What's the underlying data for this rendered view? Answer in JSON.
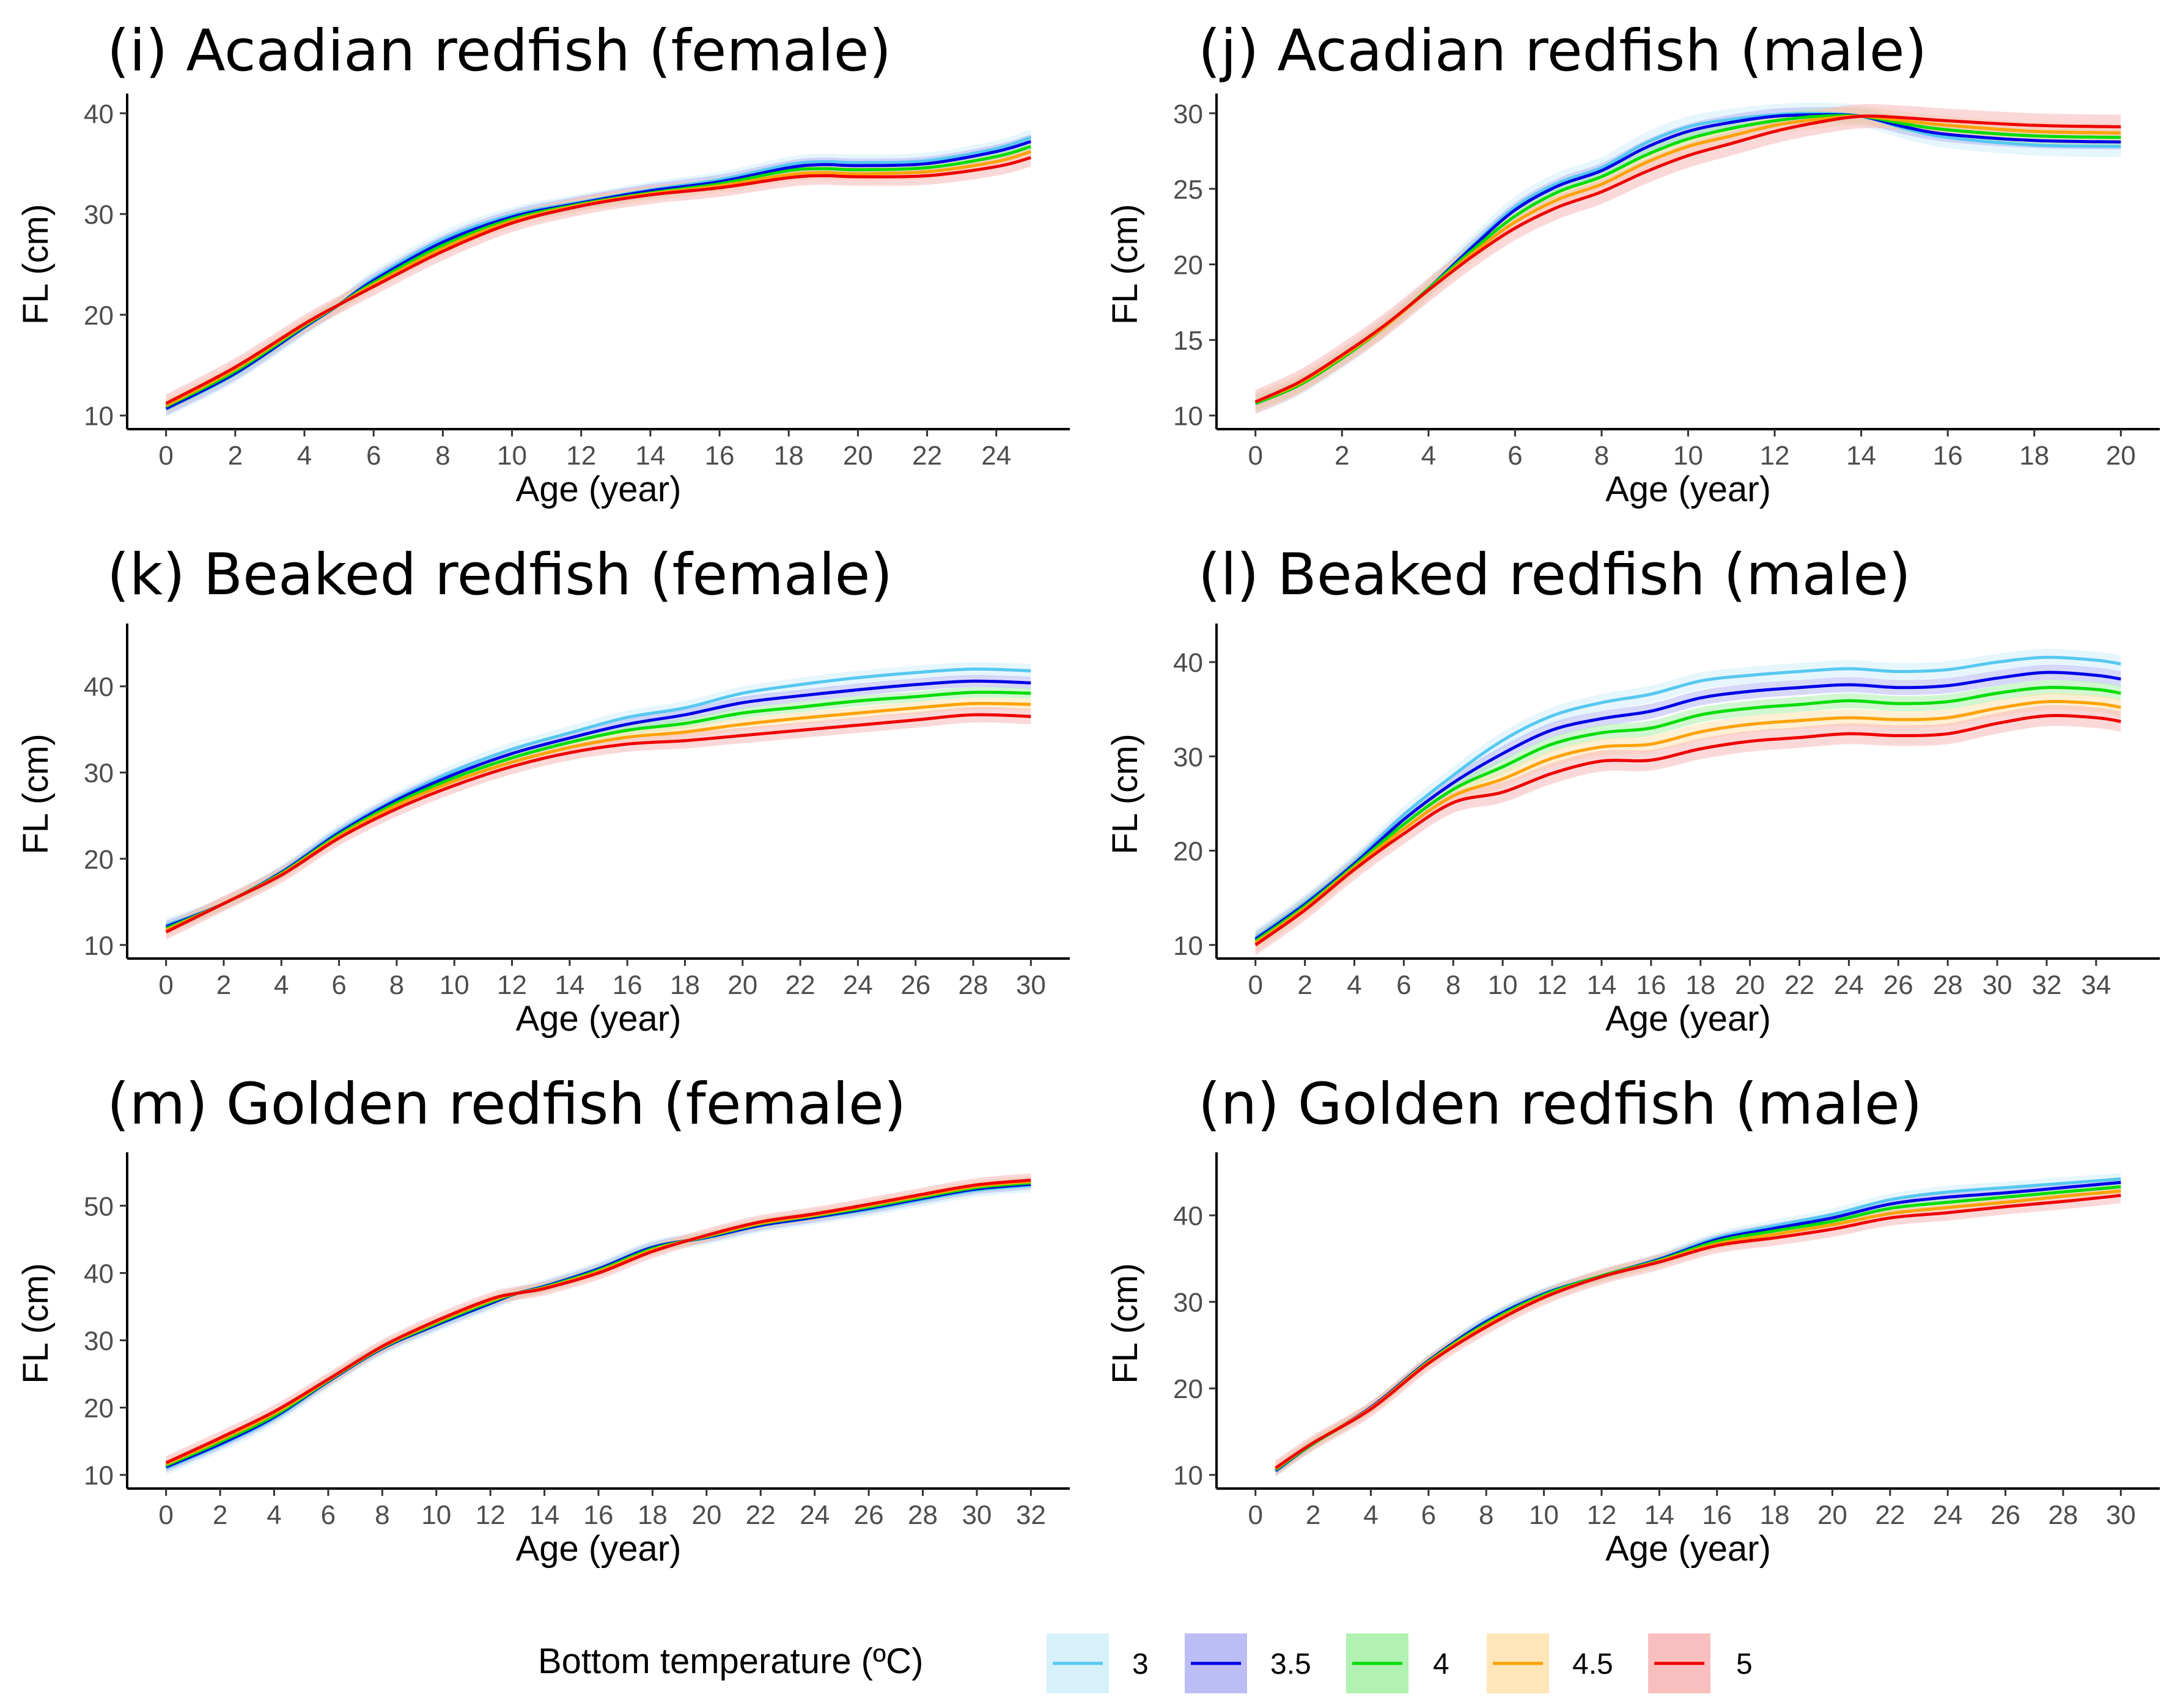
{
  "legend": {
    "title": "Bottom temperature (ºC)",
    "entries": [
      {
        "label": "3",
        "color": "#56c8f0",
        "fill": "#d2eff9"
      },
      {
        "label": "3.5",
        "color": "#0000e6",
        "fill": "#b6b6f5"
      },
      {
        "label": "4",
        "color": "#00dd00",
        "fill": "#a9f0a9"
      },
      {
        "label": "4.5",
        "color": "#ffa200",
        "fill": "#ffe3b0"
      },
      {
        "label": "5",
        "color": "#ee0000",
        "fill": "#f8b8b8"
      }
    ]
  },
  "chart_data": [
    {
      "type": "line",
      "title": "(i) Acadian redfish (female)",
      "xlabel": "Age (year)",
      "ylabel": "FL (cm)",
      "xlim": [
        0,
        25
      ],
      "ylim": [
        10,
        40
      ],
      "xticks": [
        0,
        2,
        4,
        6,
        8,
        10,
        12,
        14,
        16,
        18,
        20,
        22,
        24
      ],
      "yticks": [
        10,
        20,
        30,
        40
      ],
      "x": [
        0,
        2,
        4,
        5,
        6,
        8,
        10,
        12,
        14,
        16,
        18,
        19,
        20,
        22,
        24,
        25
      ],
      "series": [
        {
          "name": "3",
          "values": [
            10.6,
            14.1,
            18.7,
            21.0,
            23.6,
            27.5,
            29.9,
            31.2,
            32.4,
            33.4,
            34.9,
            35.2,
            35.1,
            35.3,
            36.5,
            37.6
          ],
          "band": 0.8
        },
        {
          "name": "3.5",
          "values": [
            10.7,
            14.2,
            18.8,
            21.0,
            23.4,
            27.2,
            29.7,
            31.1,
            32.3,
            33.2,
            34.6,
            34.9,
            34.8,
            35.0,
            36.2,
            37.2
          ],
          "band": 0.7
        },
        {
          "name": "4",
          "values": [
            10.9,
            14.4,
            18.9,
            21.0,
            23.2,
            26.9,
            29.5,
            31.0,
            32.1,
            33.0,
            34.3,
            34.5,
            34.4,
            34.6,
            35.7,
            36.7
          ],
          "band": 0.6
        },
        {
          "name": "4.5",
          "values": [
            11.0,
            14.6,
            19.0,
            21.0,
            23.0,
            26.6,
            29.3,
            30.9,
            32.0,
            32.8,
            33.9,
            34.1,
            34.0,
            34.2,
            35.2,
            36.2
          ],
          "band": 0.7
        },
        {
          "name": "5",
          "values": [
            11.2,
            14.8,
            19.1,
            21.0,
            22.8,
            26.3,
            29.1,
            30.8,
            31.9,
            32.6,
            33.6,
            33.8,
            33.7,
            33.8,
            34.7,
            35.6
          ],
          "band": 0.9
        }
      ]
    },
    {
      "type": "line",
      "title": "(j) Acadian redfish (male)",
      "xlabel": "Age (year)",
      "ylabel": "FL (cm)",
      "xlim": [
        0,
        20
      ],
      "ylim": [
        10,
        30
      ],
      "xticks": [
        0,
        2,
        4,
        6,
        8,
        10,
        12,
        14,
        16,
        18,
        20
      ],
      "yticks": [
        10,
        15,
        20,
        25,
        30
      ],
      "x": [
        0,
        1,
        2,
        3,
        4,
        5,
        6,
        7,
        8,
        9,
        10,
        11,
        12,
        13,
        14,
        15,
        16,
        18,
        20
      ],
      "series": [
        {
          "name": "3",
          "values": [
            10.8,
            12.0,
            13.8,
            15.9,
            18.4,
            21.2,
            23.8,
            25.4,
            26.4,
            28.0,
            29.1,
            29.6,
            29.9,
            30.0,
            29.8,
            29.0,
            28.4,
            27.9,
            27.8
          ],
          "band": 0.7
        },
        {
          "name": "3.5",
          "values": [
            10.8,
            12.0,
            13.8,
            15.9,
            18.4,
            21.1,
            23.6,
            25.2,
            26.2,
            27.7,
            28.8,
            29.4,
            29.8,
            29.9,
            29.8,
            29.1,
            28.6,
            28.2,
            28.1
          ],
          "band": 0.5
        },
        {
          "name": "4",
          "values": [
            10.8,
            12.0,
            13.8,
            15.9,
            18.4,
            20.9,
            23.2,
            24.8,
            25.8,
            27.2,
            28.3,
            29.0,
            29.5,
            29.8,
            29.8,
            29.3,
            28.9,
            28.5,
            28.4
          ],
          "band": 0.5
        },
        {
          "name": "4.5",
          "values": [
            10.9,
            12.1,
            13.9,
            15.9,
            18.3,
            20.7,
            22.8,
            24.3,
            25.3,
            26.7,
            27.8,
            28.5,
            29.2,
            29.6,
            29.8,
            29.5,
            29.2,
            28.8,
            28.7
          ],
          "band": 0.6
        },
        {
          "name": "5",
          "values": [
            10.9,
            12.2,
            14.0,
            16.0,
            18.3,
            20.5,
            22.4,
            23.8,
            24.8,
            26.1,
            27.2,
            28.0,
            28.8,
            29.4,
            29.8,
            29.7,
            29.5,
            29.2,
            29.1
          ],
          "band": 0.8
        }
      ]
    },
    {
      "type": "line",
      "title": "(k) Beaked redfish (female)",
      "xlabel": "Age (year)",
      "ylabel": "FL (cm)",
      "xlim": [
        0,
        30
      ],
      "ylim": [
        10,
        45
      ],
      "xticks": [
        0,
        2,
        4,
        6,
        8,
        10,
        12,
        14,
        16,
        18,
        20,
        22,
        24,
        26,
        28,
        30
      ],
      "yticks": [
        10,
        20,
        30,
        40
      ],
      "x": [
        0,
        2,
        4,
        6,
        8,
        10,
        12,
        14,
        16,
        18,
        20,
        22,
        24,
        26,
        28,
        30
      ],
      "series": [
        {
          "name": "3",
          "values": [
            12.3,
            14.8,
            18.5,
            23.2,
            27.0,
            30.2,
            32.7,
            34.6,
            36.4,
            37.5,
            39.2,
            40.2,
            41.0,
            41.6,
            42.0,
            41.8
          ],
          "band": 0.8
        },
        {
          "name": "3.5",
          "values": [
            12.1,
            14.8,
            18.4,
            23.0,
            26.8,
            29.8,
            32.2,
            34.0,
            35.6,
            36.7,
            38.1,
            38.9,
            39.6,
            40.2,
            40.6,
            40.4
          ],
          "band": 0.7
        },
        {
          "name": "4",
          "values": [
            11.9,
            14.8,
            18.3,
            22.8,
            26.5,
            29.4,
            31.7,
            33.5,
            34.9,
            35.7,
            36.9,
            37.6,
            38.3,
            38.8,
            39.3,
            39.2
          ],
          "band": 0.6
        },
        {
          "name": "4.5",
          "values": [
            11.7,
            14.8,
            18.2,
            22.6,
            26.2,
            29.0,
            31.2,
            32.9,
            34.1,
            34.7,
            35.6,
            36.3,
            36.9,
            37.5,
            38.0,
            37.9
          ],
          "band": 0.7
        },
        {
          "name": "5",
          "values": [
            11.5,
            14.8,
            18.1,
            22.4,
            25.8,
            28.5,
            30.7,
            32.3,
            33.3,
            33.7,
            34.3,
            34.9,
            35.5,
            36.1,
            36.7,
            36.5
          ],
          "band": 0.9
        }
      ]
    },
    {
      "type": "line",
      "title": "(l) Beaked redfish (male)",
      "xlabel": "Age (year)",
      "ylabel": "FL (cm)",
      "xlim": [
        0,
        35
      ],
      "ylim": [
        10,
        42
      ],
      "xticks": [
        0,
        2,
        4,
        6,
        8,
        10,
        12,
        14,
        16,
        18,
        20,
        22,
        24,
        26,
        28,
        30,
        32,
        34
      ],
      "yticks": [
        10,
        20,
        30,
        40
      ],
      "x": [
        0,
        2,
        4,
        6,
        8,
        10,
        12,
        14,
        16,
        18,
        20,
        22,
        24,
        26,
        28,
        30,
        32,
        34,
        35
      ],
      "series": [
        {
          "name": "3",
          "values": [
            10.8,
            14.5,
            18.8,
            23.8,
            28.0,
            31.7,
            34.3,
            35.7,
            36.6,
            38.0,
            38.6,
            39.0,
            39.3,
            39.0,
            39.2,
            40.0,
            40.5,
            40.2,
            39.8
          ],
          "band": 0.9
        },
        {
          "name": "3.5",
          "values": [
            10.6,
            14.3,
            18.6,
            23.3,
            27.2,
            30.3,
            32.8,
            34.0,
            34.8,
            36.2,
            36.9,
            37.3,
            37.6,
            37.3,
            37.5,
            38.3,
            38.9,
            38.6,
            38.2
          ],
          "band": 0.8
        },
        {
          "name": "4",
          "values": [
            10.4,
            14.1,
            18.4,
            22.8,
            26.5,
            28.9,
            31.3,
            32.5,
            33.0,
            34.4,
            35.1,
            35.5,
            35.9,
            35.6,
            35.8,
            36.7,
            37.3,
            37.1,
            36.7
          ],
          "band": 0.8
        },
        {
          "name": "4.5",
          "values": [
            10.2,
            13.9,
            18.2,
            22.3,
            25.8,
            27.6,
            29.8,
            31.0,
            31.3,
            32.6,
            33.4,
            33.8,
            34.1,
            33.9,
            34.1,
            35.1,
            35.8,
            35.6,
            35.2
          ],
          "band": 0.9
        },
        {
          "name": "5",
          "values": [
            10.0,
            13.7,
            18.0,
            21.8,
            25.1,
            26.2,
            28.2,
            29.5,
            29.6,
            30.8,
            31.6,
            32.0,
            32.4,
            32.2,
            32.4,
            33.5,
            34.3,
            34.1,
            33.7
          ],
          "band": 1.1
        }
      ]
    },
    {
      "type": "line",
      "title": "(m) Golden redfish (female)",
      "xlabel": "Age (year)",
      "ylabel": "FL (cm)",
      "xlim": [
        0,
        32
      ],
      "ylim": [
        10,
        55
      ],
      "xticks": [
        0,
        2,
        4,
        6,
        8,
        10,
        12,
        14,
        16,
        18,
        20,
        22,
        24,
        26,
        28,
        30,
        32
      ],
      "yticks": [
        10,
        20,
        30,
        40,
        50
      ],
      "x": [
        0,
        2,
        4,
        6,
        8,
        10,
        12,
        13,
        14,
        16,
        18,
        20,
        22,
        24,
        26,
        28,
        30,
        32
      ],
      "series": [
        {
          "name": "3",
          "values": [
            11.0,
            14.4,
            18.4,
            23.8,
            28.7,
            32.2,
            35.4,
            37.0,
            38.1,
            40.7,
            43.9,
            45.2,
            47.0,
            48.2,
            49.4,
            50.9,
            52.3,
            53.0
          ],
          "band": 1.0
        },
        {
          "name": "3.5",
          "values": [
            11.2,
            14.6,
            18.6,
            23.9,
            28.8,
            32.3,
            35.5,
            37.0,
            38.0,
            40.6,
            43.8,
            45.3,
            47.1,
            48.3,
            49.6,
            51.1,
            52.5,
            53.2
          ],
          "band": 0.8
        },
        {
          "name": "4",
          "values": [
            11.4,
            14.9,
            18.8,
            24.0,
            28.9,
            32.5,
            35.7,
            37.0,
            37.9,
            40.4,
            43.6,
            45.4,
            47.3,
            48.5,
            49.8,
            51.3,
            52.7,
            53.4
          ],
          "band": 0.7
        },
        {
          "name": "4.5",
          "values": [
            11.6,
            15.2,
            19.1,
            24.1,
            29.0,
            32.7,
            35.9,
            37.0,
            37.8,
            40.2,
            43.4,
            45.5,
            47.4,
            48.6,
            50.0,
            51.5,
            52.9,
            53.6
          ],
          "band": 0.8
        },
        {
          "name": "5",
          "values": [
            11.8,
            15.5,
            19.4,
            24.2,
            29.1,
            32.9,
            36.1,
            37.0,
            37.7,
            40.0,
            43.2,
            45.6,
            47.6,
            48.8,
            50.2,
            51.7,
            53.1,
            53.8
          ],
          "band": 1.0
        }
      ]
    },
    {
      "type": "line",
      "title": "(n) Golden redfish (male)",
      "xlabel": "Age (year)",
      "ylabel": "FL (cm)",
      "xlim": [
        0,
        30
      ],
      "ylim": [
        10,
        45
      ],
      "xticks": [
        0,
        2,
        4,
        6,
        8,
        10,
        12,
        14,
        16,
        18,
        20,
        22,
        24,
        26,
        28,
        30
      ],
      "yticks": [
        10,
        20,
        30,
        40
      ],
      "x": [
        0.7,
        2,
        4,
        6,
        8,
        10,
        12,
        14,
        16,
        18,
        20,
        22,
        24,
        26,
        28,
        30
      ],
      "series": [
        {
          "name": "3",
          "values": [
            10.4,
            13.6,
            17.8,
            23.2,
            27.8,
            31.0,
            33.0,
            35.0,
            37.4,
            38.8,
            40.1,
            41.8,
            42.7,
            43.2,
            43.7,
            44.2
          ],
          "band": 0.7
        },
        {
          "name": "3.5",
          "values": [
            10.5,
            13.6,
            17.8,
            23.2,
            27.7,
            30.9,
            33.0,
            34.9,
            37.2,
            38.5,
            39.7,
            41.3,
            42.1,
            42.6,
            43.2,
            43.8
          ],
          "band": 0.6
        },
        {
          "name": "4",
          "values": [
            10.6,
            13.6,
            17.7,
            23.1,
            27.5,
            30.8,
            33.0,
            34.8,
            37.0,
            38.2,
            39.3,
            40.8,
            41.5,
            42.1,
            42.7,
            43.3
          ],
          "band": 0.6
        },
        {
          "name": "4.5",
          "values": [
            10.7,
            13.7,
            17.7,
            23.0,
            27.3,
            30.6,
            32.9,
            34.7,
            36.7,
            37.8,
            38.9,
            40.2,
            40.9,
            41.5,
            42.2,
            42.8
          ],
          "band": 0.7
        },
        {
          "name": "5",
          "values": [
            10.8,
            13.7,
            17.6,
            22.9,
            27.1,
            30.5,
            32.9,
            34.6,
            36.5,
            37.4,
            38.4,
            39.7,
            40.3,
            41.0,
            41.6,
            42.3
          ],
          "band": 0.9
        }
      ]
    }
  ]
}
